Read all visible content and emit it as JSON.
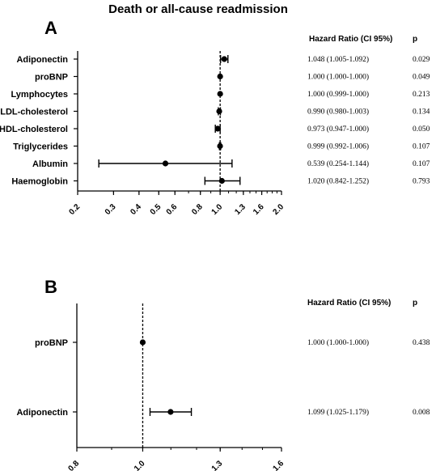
{
  "title": "Death or all-cause readmission",
  "chart_data": [
    {
      "type": "forest",
      "panel": "A",
      "title": "Death or all-cause readmission",
      "x_scale": "log",
      "x_ticks": [
        "0.2",
        "0.3",
        "0.4",
        "0.5",
        "0.6",
        "0.8",
        "1.0",
        "1.3",
        "1.6",
        "2.0"
      ],
      "xlim": [
        0.2,
        2.0
      ],
      "reference_line": 1.0,
      "column_headers": [
        "Hazard Ratio (CI 95%)",
        "p"
      ],
      "rows": [
        {
          "label": "Adiponectin",
          "hr": 1.048,
          "lo": 1.005,
          "hi": 1.092,
          "ci_text": "1.048 (1.005-1.092)",
          "p": "0.029"
        },
        {
          "label": "proBNP",
          "hr": 1.0,
          "lo": 1.0,
          "hi": 1.0,
          "ci_text": "1.000 (1.000-1.000)",
          "p": "0.049"
        },
        {
          "label": "Lymphocytes",
          "hr": 1.0,
          "lo": 0.999,
          "hi": 1.0,
          "ci_text": "1.000 (0.999-1.000)",
          "p": "0.213"
        },
        {
          "label": "LDL-cholesterol",
          "hr": 0.99,
          "lo": 0.98,
          "hi": 1.003,
          "ci_text": "0.990 (0.980-1.003)",
          "p": "0.134"
        },
        {
          "label": "HDL-cholesterol",
          "hr": 0.973,
          "lo": 0.947,
          "hi": 1.0,
          "ci_text": "0.973 (0.947-1.000)",
          "p": "0.050"
        },
        {
          "label": "Triglycerides",
          "hr": 0.999,
          "lo": 0.992,
          "hi": 1.006,
          "ci_text": "0.999 (0.992-1.006)",
          "p": "0.107"
        },
        {
          "label": "Albumin",
          "hr": 0.539,
          "lo": 0.254,
          "hi": 1.144,
          "ci_text": "0.539 (0.254-1.144)",
          "p": "0.107"
        },
        {
          "label": "Haemoglobin",
          "hr": 1.02,
          "lo": 0.842,
          "hi": 1.252,
          "ci_text": "1.020 (0.842-1.252)",
          "p": "0.793"
        }
      ]
    },
    {
      "type": "forest",
      "panel": "B",
      "x_scale": "log",
      "x_ticks": [
        "0.8",
        "1.0",
        "1.3",
        "1.6"
      ],
      "xlim": [
        0.8,
        1.6
      ],
      "reference_line": 1.0,
      "column_headers": [
        "Hazard Ratio (CI 95%)",
        "p"
      ],
      "rows": [
        {
          "label": "proBNP",
          "hr": 1.0,
          "lo": 1.0,
          "hi": 1.0,
          "ci_text": "1.000 (1.000-1.000)",
          "p": "0.438"
        },
        {
          "label": "Adiponectin",
          "hr": 1.099,
          "lo": 1.025,
          "hi": 1.179,
          "ci_text": "1.099 (1.025-1.179)",
          "p": "0.008"
        }
      ]
    }
  ]
}
